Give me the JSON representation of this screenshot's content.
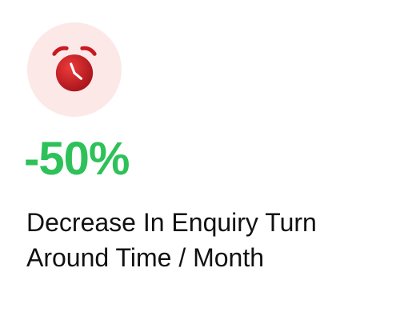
{
  "colors": {
    "badge_background": "#fde8e8",
    "icon_red": "#d41f26",
    "icon_red_dark": "#a5141a",
    "value_green": "#2ec15a"
  },
  "icon": {
    "name": "alarm-clock-icon"
  },
  "stat": {
    "value": "-50%",
    "caption_line_1": "Decrease In Enquiry Turn",
    "caption_line_2": "Around Time / Month"
  }
}
